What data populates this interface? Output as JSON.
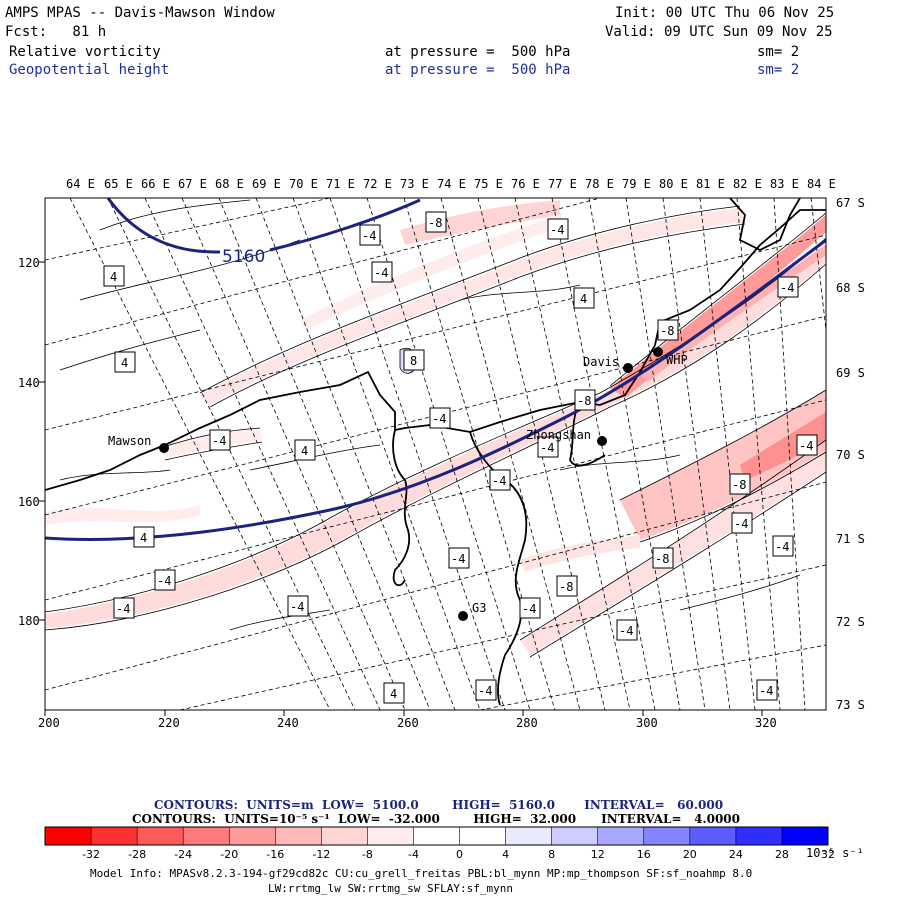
{
  "header": {
    "title": "AMPS MPAS -- Davis-Mawson Window",
    "init": "Init: 00 UTC Thu 06 Nov 25",
    "fcst": "Fcst:   81 h",
    "valid": "Valid: 09 UTC Sun 09 Nov 25",
    "field1": {
      "name": "Relative vorticity",
      "level": "at pressure =  500 hPa",
      "sm": "sm= 2"
    },
    "field2": {
      "name": "Geopotential height",
      "level": "at pressure =  500 hPa",
      "sm": "sm= 2"
    }
  },
  "map": {
    "longitude_labels": [
      "64 E",
      "65 E",
      "66 E",
      "67 E",
      "68 E",
      "69 E",
      "70 E",
      "71 E",
      "72 E",
      "73 E",
      "74 E",
      "75 E",
      "76 E",
      "77 E",
      "78 E",
      "79 E",
      "80 E",
      "81 E",
      "82 E",
      "83 E",
      "84 E"
    ],
    "latitude_labels": [
      "67 S",
      "68 S",
      "69 S",
      "70 S",
      "71 S",
      "72 S",
      "73 S"
    ],
    "x_ticks": [
      "200",
      "220",
      "240",
      "260",
      "280",
      "300",
      "320"
    ],
    "y_ticks": [
      "120",
      "140",
      "160",
      "180"
    ],
    "stations": [
      {
        "name": "Mawson"
      },
      {
        "name": "Davis"
      },
      {
        "name": "WHP"
      },
      {
        "name": "Zhongshan"
      },
      {
        "name": "G3"
      }
    ],
    "height_contour_label": "5160",
    "vorticity_labels": [
      "-8",
      "-4",
      "-4",
      "4",
      "4",
      "4",
      "8",
      "-4",
      "-4",
      "4",
      "-4",
      "-8",
      "-4",
      "-4",
      "-8",
      "-4",
      "-4",
      "4",
      "-4",
      "-4",
      "-4",
      "-8",
      "-8",
      "-4",
      "-4",
      "-4",
      "-8",
      "-4",
      "-4",
      "-4",
      "4",
      "-4"
    ]
  },
  "contours_info": {
    "line1": "CONTOURS:  UNITS=m  LOW=  5100.0        HIGH=  5160.0       INTERVAL=   60.000",
    "line2": "CONTOURS:  UNITS=10⁻⁵ s⁻¹  LOW=  -32.000        HIGH=  32.000      INTERVAL=   4.0000"
  },
  "colorbar": {
    "colors": [
      "#ff0000",
      "#ff3030",
      "#ff5a5a",
      "#ff7a7a",
      "#ff9a9a",
      "#ffb8b8",
      "#ffd4d4",
      "#ffecec",
      "#ffffff",
      "#ffffff",
      "#eaeaff",
      "#cdcdff",
      "#a8a8ff",
      "#8484ff",
      "#5c5cff",
      "#2e2eff",
      "#0000ff"
    ],
    "tick_labels": [
      "-32",
      "-28",
      "-24",
      "-20",
      "-16",
      "-12",
      "-8",
      "-4",
      "0",
      "4",
      "8",
      "12",
      "16",
      "20",
      "24",
      "28",
      "32"
    ],
    "units": "10⁻⁵ s⁻¹"
  },
  "model_info": {
    "line1": "Model Info: MPASv8.2.3-194-gf29cd82c CU:cu_grell_freitas PBL:bl_mynn MP:mp_thompson SF:sf_noahmp 8.0",
    "line2": "LW:rrtmg_lw SW:rrtmg_sw SFLAY:sf_mynn"
  }
}
